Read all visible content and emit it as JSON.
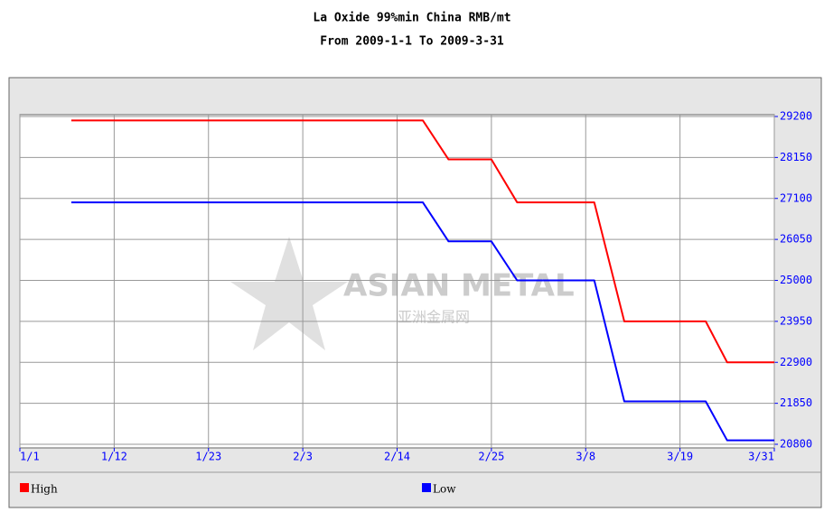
{
  "chart_data": {
    "type": "line",
    "title": "La Oxide  99%min China  RMB/mt",
    "subtitle": "From 2009-1-1 To 2009-3-31",
    "watermark": "ASIAN METAL",
    "watermark_sub": "亚洲金属网",
    "x": [
      6,
      47,
      50,
      55,
      58,
      67,
      70.5,
      80,
      82.5,
      88
    ],
    "xlim": [
      0,
      88
    ],
    "xticks": [
      {
        "value": 0,
        "label": "1/1"
      },
      {
        "value": 11,
        "label": "1/12"
      },
      {
        "value": 22,
        "label": "1/23"
      },
      {
        "value": 33,
        "label": "2/3"
      },
      {
        "value": 44,
        "label": "2/14"
      },
      {
        "value": 55,
        "label": "2/25"
      },
      {
        "value": 66,
        "label": "3/8"
      },
      {
        "value": 77,
        "label": "3/19"
      },
      {
        "value": 88,
        "label": "3/31"
      }
    ],
    "ylim": [
      20800,
      29200
    ],
    "yticks": [
      20800,
      21850,
      22900,
      23950,
      25000,
      26050,
      27100,
      28150,
      29200
    ],
    "grid": true,
    "series": [
      {
        "name": "High",
        "color": "#ff0000",
        "values": [
          29100,
          29100,
          28100,
          28100,
          27000,
          27000,
          23950,
          23950,
          22900,
          22900
        ]
      },
      {
        "name": "Low",
        "color": "#0000ff",
        "values": [
          27000,
          27000,
          26000,
          26000,
          25000,
          25000,
          21900,
          21900,
          20900,
          20900
        ]
      }
    ]
  }
}
